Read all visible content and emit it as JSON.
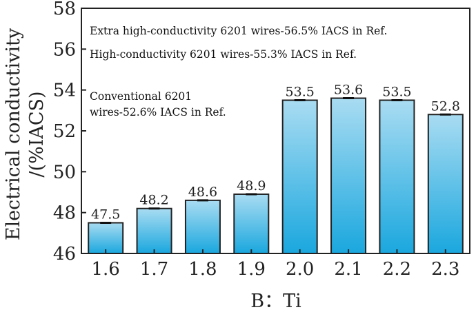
{
  "chart_data": {
    "type": "bar",
    "categories": [
      "1.6",
      "1.7",
      "1.8",
      "1.9",
      "2.0",
      "2.1",
      "2.2",
      "2.3"
    ],
    "values": [
      47.5,
      48.2,
      48.6,
      48.9,
      53.5,
      53.6,
      53.5,
      52.8
    ],
    "value_labels": [
      "47.5",
      "48.2",
      "48.6",
      "48.9",
      "53.5",
      "53.6",
      "53.5",
      "52.8"
    ],
    "xlabel": "B：Ti",
    "ylabel_line1": "Electrical conductivity",
    "ylabel_line2": "/(%IACS)",
    "ylim": [
      46,
      58
    ],
    "yticks": [
      46,
      48,
      50,
      52,
      54,
      56,
      58
    ],
    "grid": false,
    "error_bars": true,
    "bar_color_top": "#a9dcf2",
    "bar_color_bottom": "#1aa7de",
    "annotations": [
      "Extra high-conductivity 6201 wires-56.5% IACS in Ref.",
      "High-conductivity 6201 wires-55.3% IACS in Ref.",
      "Conventional 6201",
      "wires-52.6% IACS in Ref."
    ]
  }
}
